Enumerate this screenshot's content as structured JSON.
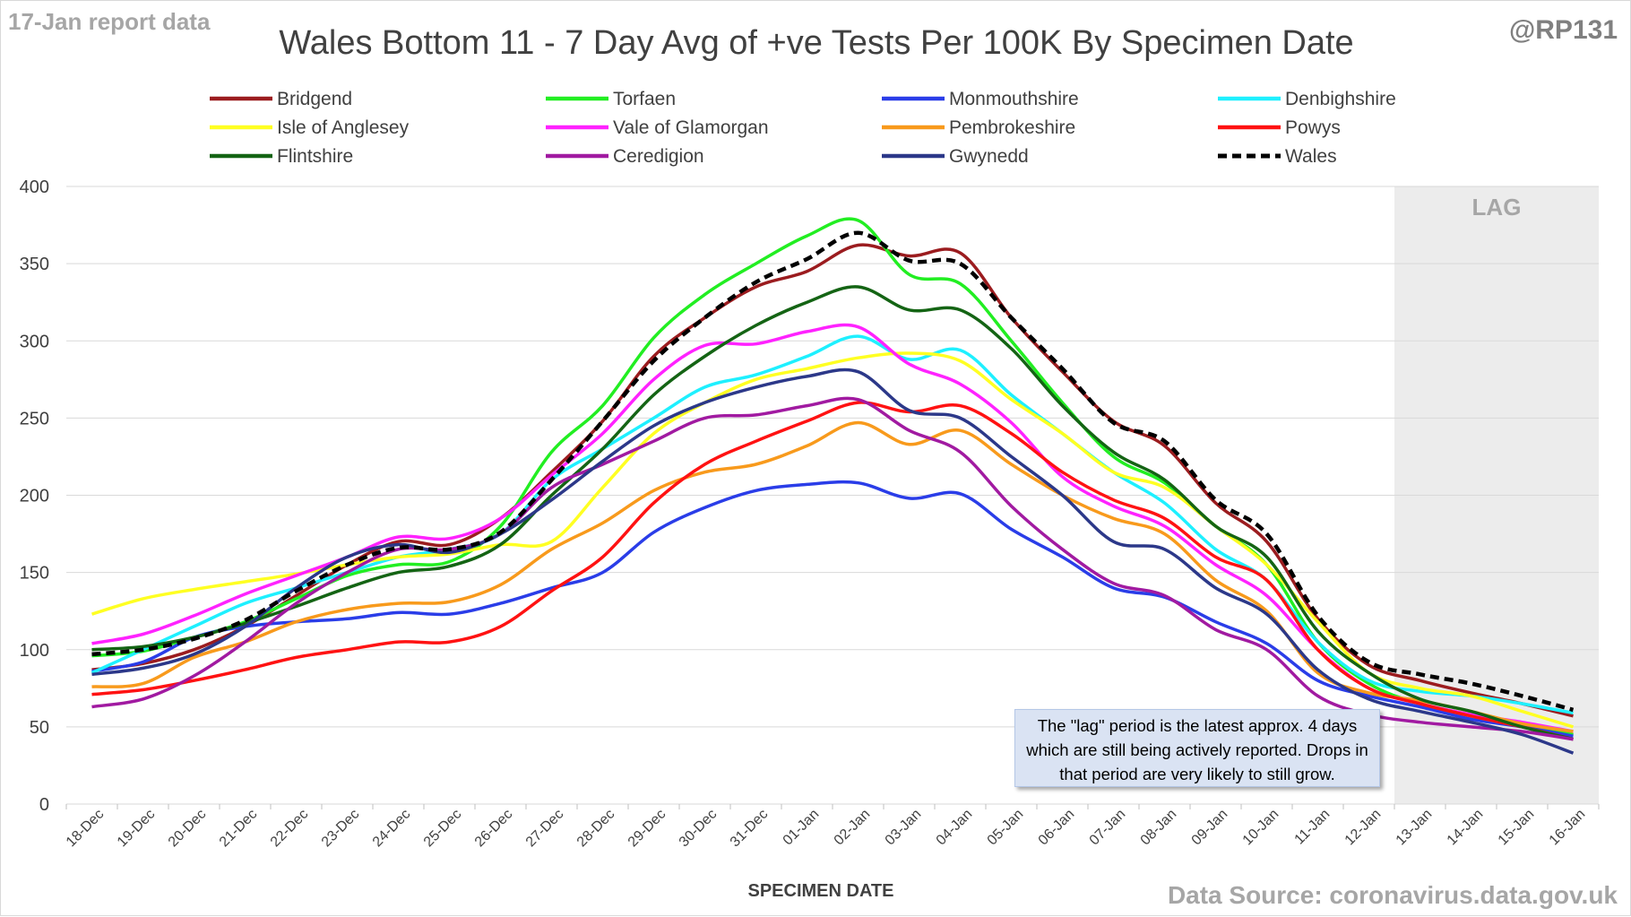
{
  "header": {
    "corner_left": "17-Jan report data",
    "corner_right": "@RP131",
    "source": "Data Source: coronavirus.data.gov.uk"
  },
  "note": "The \"lag\" period is the latest approx. 4 days which are still being actively reported.  Drops in that period are very likely to still grow.",
  "chart_data": {
    "type": "line",
    "title": "Wales Bottom 11 - 7 Day Avg of +ve Tests Per 100K By Specimen Date",
    "xlabel": "SPECIMEN DATE",
    "ylabel": "",
    "ylim": [
      0,
      400
    ],
    "yticks": [
      0,
      50,
      100,
      150,
      200,
      250,
      300,
      350,
      400
    ],
    "grid": true,
    "legend_position": "top",
    "lag_label": "LAG",
    "lag_start": "13-Jan",
    "x": [
      "18-Dec",
      "19-Dec",
      "20-Dec",
      "21-Dec",
      "22-Dec",
      "23-Dec",
      "24-Dec",
      "25-Dec",
      "26-Dec",
      "27-Dec",
      "28-Dec",
      "29-Dec",
      "30-Dec",
      "31-Dec",
      "01-Jan",
      "02-Jan",
      "03-Jan",
      "04-Jan",
      "05-Jan",
      "06-Jan",
      "07-Jan",
      "08-Jan",
      "09-Jan",
      "10-Jan",
      "11-Jan",
      "12-Jan",
      "13-Jan",
      "14-Jan",
      "15-Jan",
      "16-Jan"
    ],
    "series": [
      {
        "name": "Bridgend",
        "color": "#9b1c1f",
        "dash": false,
        "values": [
          87,
          91,
          100,
          115,
          135,
          155,
          170,
          168,
          185,
          215,
          248,
          290,
          315,
          335,
          345,
          362,
          355,
          357,
          315,
          280,
          248,
          232,
          195,
          170,
          120,
          90,
          80,
          72,
          65,
          57
        ]
      },
      {
        "name": "Torfaen",
        "color": "#22ee22",
        "dash": false,
        "values": [
          96,
          99,
          108,
          118,
          133,
          148,
          155,
          157,
          180,
          228,
          258,
          302,
          330,
          350,
          368,
          378,
          343,
          337,
          300,
          260,
          225,
          208,
          180,
          155,
          105,
          78,
          65,
          58,
          52,
          45
        ]
      },
      {
        "name": "Monmouthshire",
        "color": "#2a3de8",
        "dash": false,
        "values": [
          86,
          92,
          108,
          115,
          118,
          120,
          124,
          123,
          130,
          140,
          150,
          176,
          192,
          203,
          207,
          208,
          198,
          201,
          178,
          160,
          140,
          134,
          118,
          104,
          80,
          70,
          63,
          55,
          50,
          44
        ]
      },
      {
        "name": "Denbighshire",
        "color": "#1ef0ff",
        "dash": false,
        "values": [
          85,
          100,
          115,
          130,
          140,
          150,
          160,
          165,
          175,
          210,
          230,
          250,
          270,
          278,
          290,
          303,
          288,
          294,
          265,
          240,
          215,
          195,
          165,
          145,
          105,
          80,
          73,
          70,
          65,
          59
        ]
      },
      {
        "name": "Isle of Anglesey",
        "color": "#ffff22",
        "dash": false,
        "values": [
          123,
          133,
          139,
          144,
          149,
          155,
          160,
          162,
          168,
          170,
          205,
          240,
          260,
          275,
          282,
          289,
          292,
          287,
          262,
          240,
          215,
          205,
          180,
          155,
          118,
          85,
          75,
          70,
          60,
          50
        ]
      },
      {
        "name": "Vale of Glamorgan",
        "color": "#ff22ff",
        "dash": false,
        "values": [
          104,
          110,
          122,
          136,
          148,
          160,
          173,
          172,
          185,
          213,
          240,
          275,
          297,
          298,
          306,
          309,
          285,
          272,
          247,
          212,
          193,
          180,
          155,
          135,
          100,
          75,
          65,
          58,
          53,
          47
        ]
      },
      {
        "name": "Pembrokeshire",
        "color": "#f89a1c",
        "dash": false,
        "values": [
          76,
          78,
          95,
          105,
          118,
          126,
          130,
          131,
          142,
          165,
          182,
          203,
          215,
          220,
          232,
          247,
          233,
          242,
          220,
          200,
          185,
          175,
          145,
          125,
          85,
          72,
          67,
          60,
          52,
          47
        ]
      },
      {
        "name": "Powys",
        "color": "#ff1212",
        "dash": false,
        "values": [
          71,
          74,
          80,
          87,
          95,
          100,
          105,
          105,
          115,
          138,
          160,
          195,
          220,
          235,
          248,
          260,
          254,
          258,
          240,
          215,
          197,
          185,
          160,
          145,
          100,
          75,
          65,
          57,
          50,
          42
        ]
      },
      {
        "name": "Flintshire",
        "color": "#146414",
        "dash": false,
        "values": [
          100,
          102,
          108,
          117,
          128,
          140,
          150,
          154,
          168,
          200,
          230,
          265,
          290,
          310,
          325,
          335,
          320,
          320,
          295,
          258,
          228,
          210,
          180,
          160,
          112,
          85,
          68,
          60,
          50,
          42
        ]
      },
      {
        "name": "Ceredigion",
        "color": "#a11aa1",
        "dash": false,
        "values": [
          63,
          68,
          83,
          105,
          130,
          150,
          165,
          165,
          175,
          205,
          220,
          235,
          250,
          252,
          258,
          262,
          242,
          228,
          193,
          165,
          143,
          135,
          113,
          100,
          70,
          58,
          53,
          50,
          47,
          42
        ]
      },
      {
        "name": "Gwynedd",
        "color": "#2c3889",
        "dash": false,
        "values": [
          84,
          88,
          97,
          115,
          140,
          160,
          168,
          163,
          175,
          197,
          222,
          245,
          260,
          270,
          277,
          280,
          255,
          250,
          225,
          200,
          170,
          165,
          140,
          123,
          87,
          68,
          60,
          53,
          45,
          33
        ]
      },
      {
        "name": "Wales",
        "color": "#000000",
        "dash": true,
        "values": [
          97,
          100,
          107,
          119,
          138,
          155,
          166,
          165,
          176,
          210,
          248,
          287,
          315,
          338,
          353,
          370,
          352,
          350,
          315,
          282,
          247,
          235,
          197,
          175,
          122,
          92,
          84,
          78,
          70,
          61
        ]
      }
    ]
  }
}
